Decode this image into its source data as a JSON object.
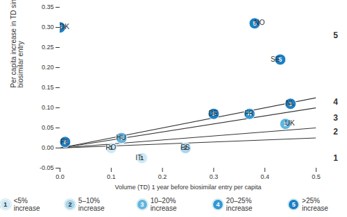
{
  "chart_data": {
    "type": "scatter",
    "x_label": "Volume (TD) 1 year before biosimilar entry per capita",
    "y_label": "Per capita increase in TD since biosimilar entry",
    "xlim": [
      0,
      0.5
    ],
    "ylim": [
      -0.05,
      0.35
    ],
    "xticks": [
      {
        "value": 0,
        "label": "0.0"
      },
      {
        "value": 0.1,
        "label": "0.1"
      },
      {
        "value": 0.2,
        "label": "0.2"
      },
      {
        "value": 0.3,
        "label": "0.3"
      },
      {
        "value": 0.4,
        "label": "0.4"
      },
      {
        "value": 0.5,
        "label": "0.5"
      }
    ],
    "yticks": [
      {
        "value": -0.05,
        "label": "-0.05"
      },
      {
        "value": 0,
        "label": "0.00"
      },
      {
        "value": 0.05,
        "label": "0.05"
      },
      {
        "value": 0.1,
        "label": "0.10"
      },
      {
        "value": 0.15,
        "label": "0.15"
      },
      {
        "value": 0.2,
        "label": "0.20"
      },
      {
        "value": 0.25,
        "label": "0.25"
      },
      {
        "value": 0.3,
        "label": "0.30"
      },
      {
        "value": 0.35,
        "label": "0.35"
      }
    ],
    "points": [
      {
        "label": "DK",
        "x": 0.0,
        "y": 0.3,
        "group": 5
      },
      {
        "label": "NO",
        "x": 0.38,
        "y": 0.31,
        "group": 5
      },
      {
        "label": "SE",
        "x": 0.43,
        "y": 0.22,
        "group": 5
      },
      {
        "label": "NL",
        "x": 0.45,
        "y": 0.11,
        "group": 5
      },
      {
        "label": "DE",
        "x": 0.3,
        "y": 0.085,
        "group": 5
      },
      {
        "label": "FR",
        "x": 0.37,
        "y": 0.085,
        "group": 4
      },
      {
        "label": "UK",
        "x": 0.44,
        "y": 0.06,
        "group": 3
      },
      {
        "label": "HU",
        "x": 0.12,
        "y": 0.025,
        "group": 3
      },
      {
        "label": "PL",
        "x": 0.01,
        "y": 0.015,
        "group": 5
      },
      {
        "label": "RO",
        "x": 0.1,
        "y": 0.0,
        "group": 1
      },
      {
        "label": "IT",
        "x": 0.16,
        "y": -0.025,
        "group": 1
      },
      {
        "label": "ES",
        "x": 0.245,
        "y": 0.0,
        "group": 2
      }
    ],
    "groups": [
      {
        "value": 1,
        "label": "<5% increase",
        "color": "#cde9f6"
      },
      {
        "value": 2,
        "label": "5–10% increase",
        "color": "#a8d6ee"
      },
      {
        "value": 3,
        "label": "10–20% increase",
        "color": "#62b5e0"
      },
      {
        "value": 4,
        "label": "20–25% increase",
        "color": "#3399d6"
      },
      {
        "value": 5,
        "label": ">25% increase",
        "color": "#1c7fc4"
      }
    ],
    "lines": [
      {
        "x": [
          0,
          0.5
        ],
        "y": [
          0,
          0.025
        ]
      },
      {
        "x": [
          0,
          0.5
        ],
        "y": [
          0,
          0.05
        ]
      },
      {
        "x": [
          0,
          0.5
        ],
        "y": [
          0,
          0.1
        ]
      },
      {
        "x": [
          0,
          0.5
        ],
        "y": [
          0,
          0.125
        ]
      }
    ],
    "annotations": [
      {
        "text": "5",
        "x": 0.5,
        "y": 0.28
      },
      {
        "text": "4",
        "x": 0.5,
        "y": 0.115
      },
      {
        "text": "3",
        "x": 0.5,
        "y": 0.075
      },
      {
        "text": "2",
        "x": 0.5,
        "y": 0.04
      },
      {
        "text": "1",
        "x": 0.5,
        "y": -0.025
      }
    ]
  }
}
